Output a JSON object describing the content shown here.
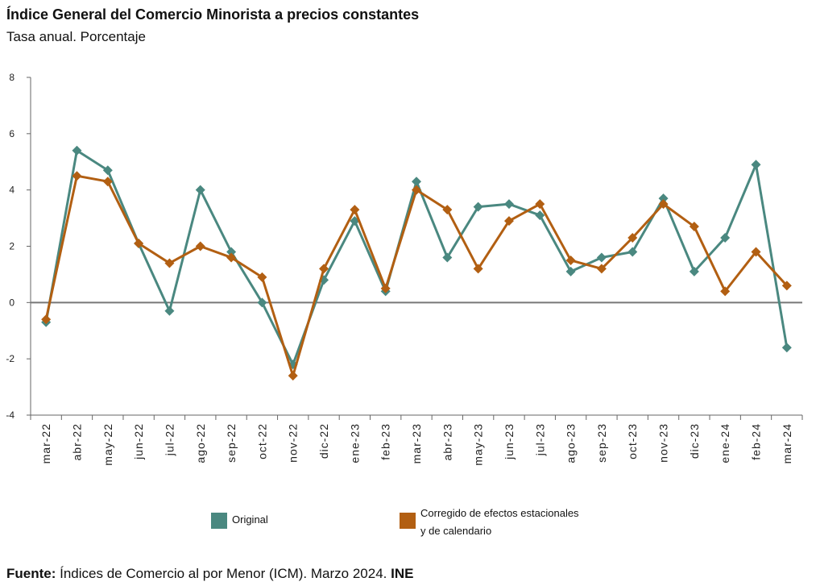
{
  "header": {
    "title": "Índice General del Comercio Minorista a precios constantes",
    "subtitle": "Tasa anual. Porcentaje"
  },
  "chart_data": {
    "type": "line",
    "title": "Índice General del Comercio Minorista a precios constantes",
    "subtitle": "Tasa anual. Porcentaje",
    "xlabel": "",
    "ylabel": "",
    "ylim": [
      -4,
      8
    ],
    "yticks": [
      "8",
      "6",
      "4",
      "2",
      "0",
      "-2",
      "-4"
    ],
    "grid": false,
    "categories": [
      "mar-22",
      "abr-22",
      "may-22",
      "jun-22",
      "jul-22",
      "ago-22",
      "sep-22",
      "oct-22",
      "nov-22",
      "dic-22",
      "ene-23",
      "feb-23",
      "mar-23",
      "abr-23",
      "may-23",
      "jun-23",
      "jul-23",
      "ago-23",
      "sep-23",
      "oct-23",
      "nov-23",
      "dic-23",
      "ene-24",
      "feb-24",
      "mar-24"
    ],
    "series": [
      {
        "name": "Original",
        "color": "#4a8880",
        "values": [
          -0.7,
          5.4,
          4.7,
          2.1,
          -0.3,
          4.0,
          1.8,
          0.0,
          -2.2,
          0.8,
          2.9,
          0.4,
          4.3,
          1.6,
          3.4,
          3.5,
          3.1,
          1.1,
          1.6,
          1.8,
          3.7,
          1.1,
          2.3,
          4.9,
          -1.6
        ]
      },
      {
        "name": "Corregido de efectos estacionales y de calendario",
        "color": "#b25f12",
        "values": [
          -0.6,
          4.5,
          4.3,
          2.1,
          1.4,
          2.0,
          1.6,
          0.9,
          -2.6,
          1.2,
          3.3,
          0.5,
          4.0,
          3.3,
          1.2,
          2.9,
          3.5,
          1.5,
          1.2,
          2.3,
          3.5,
          2.7,
          0.4,
          1.8,
          0.6
        ]
      }
    ],
    "legend_position": "bottom"
  },
  "legend": {
    "original_label": "Original",
    "corregido_label": "Corregido de efectos estacionales y de calendario"
  },
  "footer": {
    "source_label": "Fuente:",
    "source_text": " Índices de Comercio al por Menor (ICM).  Marzo 2024. ",
    "source_org": "INE"
  }
}
